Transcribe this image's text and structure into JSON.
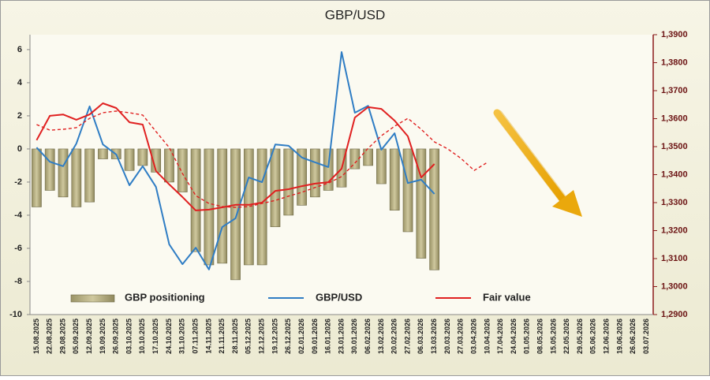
{
  "chart_data": {
    "type": "combo",
    "title": "GBP/USD",
    "categories": [
      "15.08.2025",
      "22.08.2025",
      "29.08.2025",
      "05.09.2025",
      "12.09.2025",
      "19.09.2025",
      "26.09.2025",
      "03.10.2025",
      "10.10.2025",
      "17.10.2025",
      "24.10.2025",
      "31.10.2025",
      "07.11.2025",
      "14.11.2025",
      "21.11.2025",
      "28.11.2025",
      "05.12.2025",
      "12.12.2025",
      "19.12.2025",
      "26.12.2025",
      "02.01.2026",
      "09.01.2026",
      "16.01.2026",
      "23.01.2026",
      "30.01.2026",
      "06.02.2026",
      "13.02.2026",
      "20.02.2026",
      "27.02.2026",
      "06.03.2026",
      "13.03.2026",
      "20.03.2026",
      "27.03.2026",
      "03.04.2026",
      "10.04.2026",
      "17.04.2026",
      "24.04.2026",
      "01.05.2026",
      "08.05.2026",
      "15.05.2026",
      "22.05.2026",
      "29.05.2026",
      "05.06.2026",
      "12.06.2026",
      "19.06.2026",
      "26.06.2026",
      "03.07.2026"
    ],
    "series": [
      {
        "name": "GBP positioning",
        "type": "bar",
        "color": "#b7af80",
        "values": [
          -3.5,
          -2.5,
          -2.9,
          -3.5,
          -3.2,
          -0.6,
          -0.6,
          -1.3,
          -1.0,
          -1.4,
          -2.0,
          -2.6,
          -6.2,
          -7.0,
          -6.9,
          -7.9,
          -7.0,
          -7.0,
          -4.7,
          -4.0,
          -3.4,
          -2.9,
          -2.5,
          -2.3,
          -1.2,
          -1.0,
          -2.1,
          -3.7,
          -5.0,
          -6.6,
          -7.3,
          null,
          null,
          null,
          null,
          null,
          null,
          null,
          null,
          null,
          null,
          null,
          null,
          null,
          null,
          null,
          null
        ]
      },
      {
        "name": "GBP/USD",
        "type": "line",
        "axis": "y2",
        "color": "#2f7dc4",
        "values": [
          1.3497,
          1.3446,
          1.343,
          1.3511,
          1.3644,
          1.3508,
          1.3472,
          1.3362,
          1.343,
          1.3356,
          1.3151,
          1.308,
          1.3139,
          1.3061,
          1.3213,
          1.3244,
          1.339,
          1.3373,
          1.3508,
          1.3503,
          1.3461,
          1.3444,
          1.3427,
          1.3838,
          1.3621,
          1.3646,
          1.3489,
          1.3548,
          1.337,
          1.3382,
          1.3331,
          null,
          null,
          null,
          null,
          null,
          null,
          null,
          null,
          null,
          null,
          null,
          null,
          null,
          null,
          null,
          null
        ]
      },
      {
        "name": "Fair value",
        "type": "line",
        "axis": "y2",
        "color": "#e02020",
        "values": [
          1.3523,
          1.361,
          1.3615,
          1.3596,
          1.3615,
          1.3655,
          1.3638,
          1.3587,
          1.3579,
          1.3413,
          1.3365,
          1.332,
          1.3272,
          1.3275,
          1.3283,
          1.3292,
          1.3292,
          1.33,
          1.3342,
          1.3348,
          1.3359,
          1.3368,
          1.3373,
          1.3421,
          1.3604,
          1.3641,
          1.3635,
          1.3593,
          1.3537,
          1.339,
          1.3438,
          null,
          null,
          null,
          null,
          null,
          null,
          null,
          null,
          null,
          null,
          null,
          null,
          null,
          null,
          null,
          null
        ]
      },
      {
        "type": "line",
        "axis": "y2",
        "color": "#e02020",
        "dashed": true,
        "values": [
          1.3579,
          1.3559,
          1.3562,
          1.3568,
          1.3601,
          1.3621,
          1.3627,
          1.3621,
          1.3613,
          1.3554,
          1.3497,
          1.3404,
          1.3325,
          1.3297,
          1.3286,
          1.3283,
          1.3286,
          1.3297,
          1.3308,
          1.3323,
          1.3337,
          1.3354,
          1.337,
          1.3393,
          1.3441,
          1.3494,
          1.3539,
          1.3573,
          1.3601,
          1.3562,
          1.3517,
          1.3492,
          1.3458,
          1.3415,
          1.3444,
          null,
          null,
          null,
          null,
          null,
          null,
          null,
          null,
          null,
          null,
          null,
          null
        ]
      }
    ],
    "ylim": [
      -10,
      6.9
    ],
    "yticks": [
      -10,
      -8,
      -6,
      -4,
      -2,
      0,
      2,
      4,
      6
    ],
    "y2lim": [
      1.29,
      1.39
    ],
    "y2ticks": [
      {
        "value": 1.29,
        "label": "1,2900"
      },
      {
        "value": 1.3,
        "label": "1,3000"
      },
      {
        "value": 1.31,
        "label": "1,3100"
      },
      {
        "value": 1.32,
        "label": "1,3200"
      },
      {
        "value": 1.33,
        "label": "1,3300"
      },
      {
        "value": 1.34,
        "label": "1,3400"
      },
      {
        "value": 1.35,
        "label": "1,3500"
      },
      {
        "value": 1.36,
        "label": "1,3600"
      },
      {
        "value": 1.37,
        "label": "1,3700"
      },
      {
        "value": 1.38,
        "label": "1,3800"
      },
      {
        "value": 1.39,
        "label": "1,3900"
      }
    ]
  }
}
